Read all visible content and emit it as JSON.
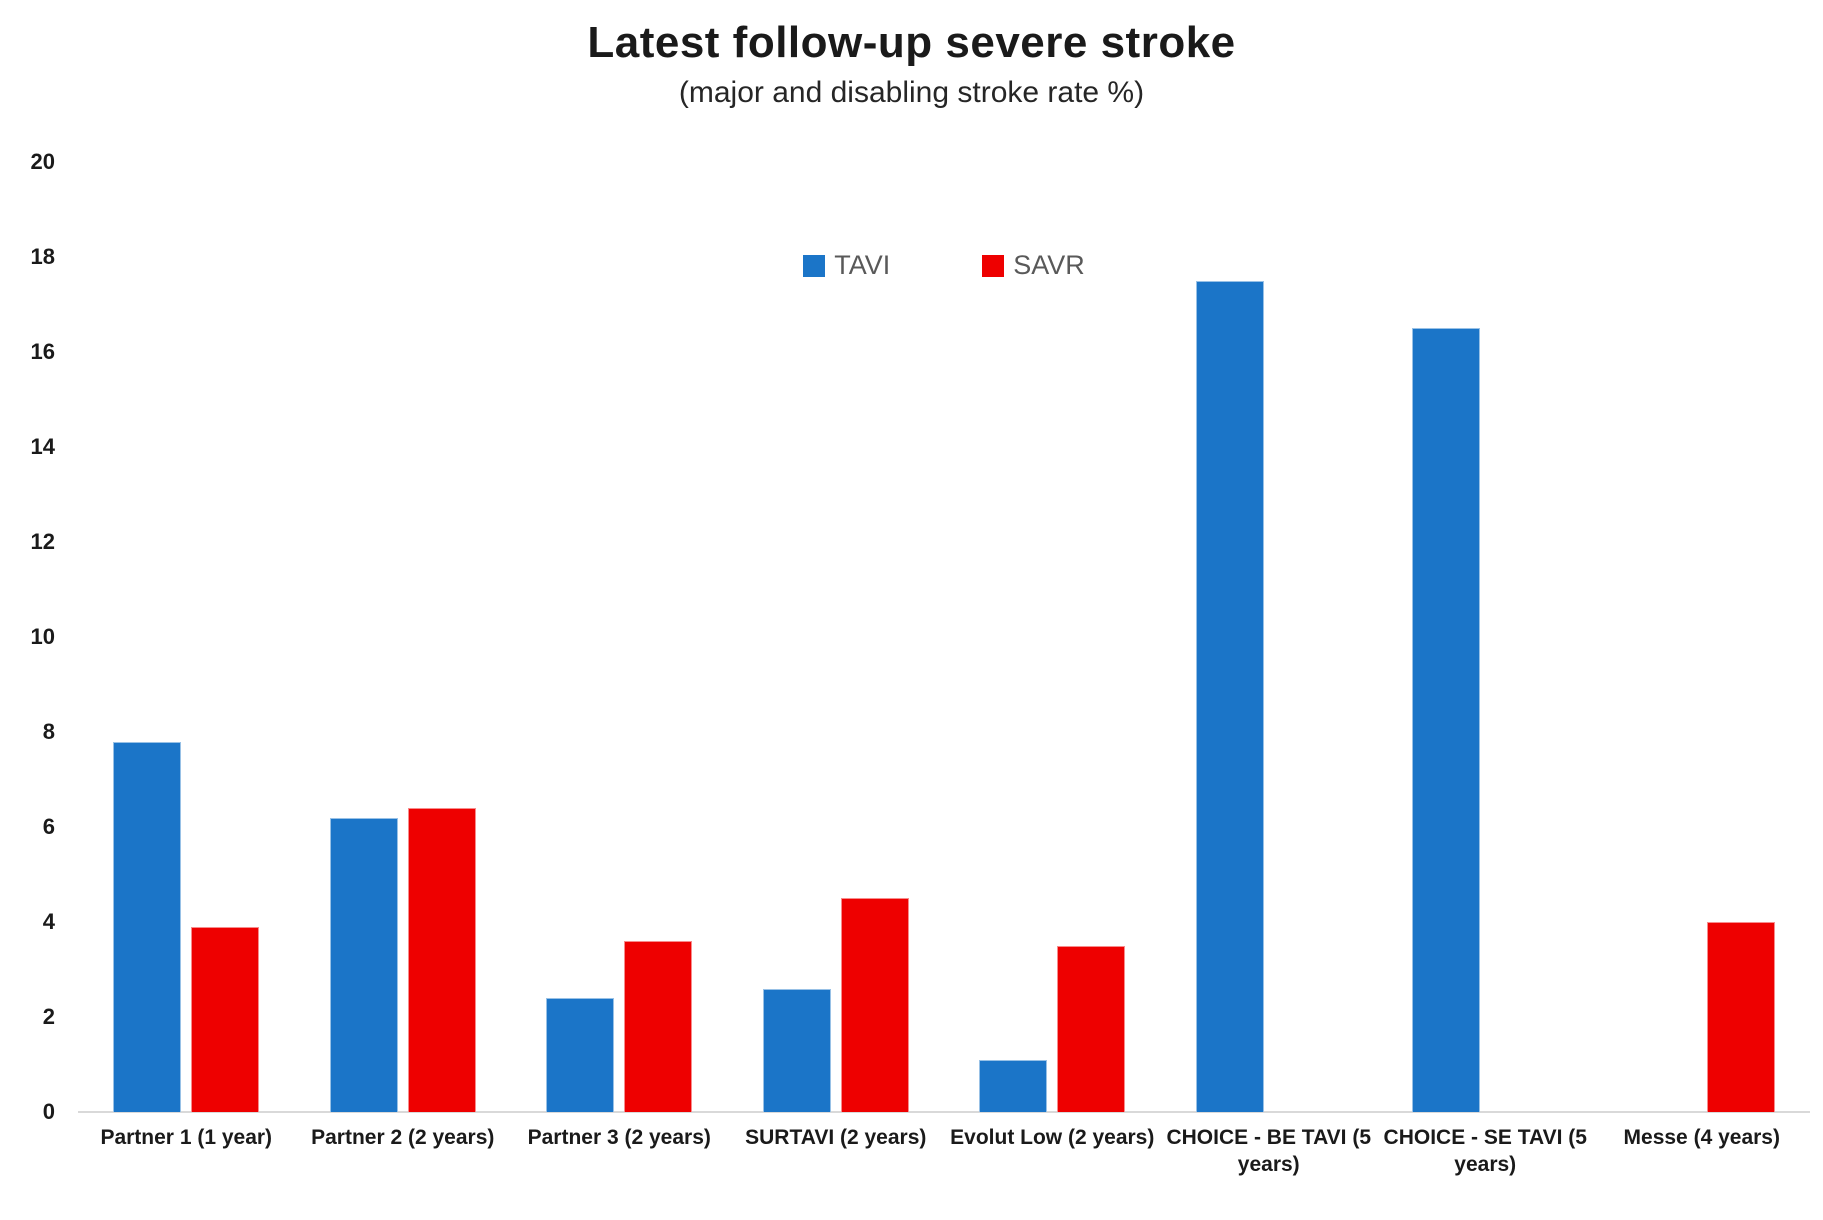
{
  "title": "Latest follow-up severe stroke",
  "subtitle": "(major and disabling stroke rate %)",
  "colors": {
    "tavi_blue": "#1B75C8",
    "savr_red": "#EE0000",
    "axis_line": "#D9D9D9",
    "legend_text": "#595959",
    "label_text": "#1A1A1A"
  },
  "chart_data": {
    "type": "bar",
    "title": "Latest follow-up severe stroke",
    "subtitle": "(major and disabling stroke rate %)",
    "xlabel": "",
    "ylabel": "",
    "ylim": [
      0,
      20
    ],
    "yticks": [
      0,
      2,
      4,
      6,
      8,
      10,
      12,
      14,
      16,
      18,
      20
    ],
    "grid": false,
    "legend_position": "top-center",
    "categories": [
      "Partner 1 (1 year)",
      "Partner 2 (2 years)",
      "Partner 3 (2 years)",
      "SURTAVI (2 years)",
      "Evolut Low (2 years)",
      "CHOICE - BE TAVI (5 years)",
      "CHOICE - SE TAVI (5 years)",
      "Messe (4 years)"
    ],
    "series": [
      {
        "name": "TAVI",
        "color": "#1B75C8",
        "values": [
          7.8,
          6.2,
          2.4,
          2.6,
          1.1,
          17.5,
          16.5,
          null
        ]
      },
      {
        "name": "SAVR",
        "color": "#EE0000",
        "values": [
          3.9,
          6.4,
          3.6,
          4.5,
          3.5,
          null,
          null,
          4.0
        ]
      }
    ]
  }
}
